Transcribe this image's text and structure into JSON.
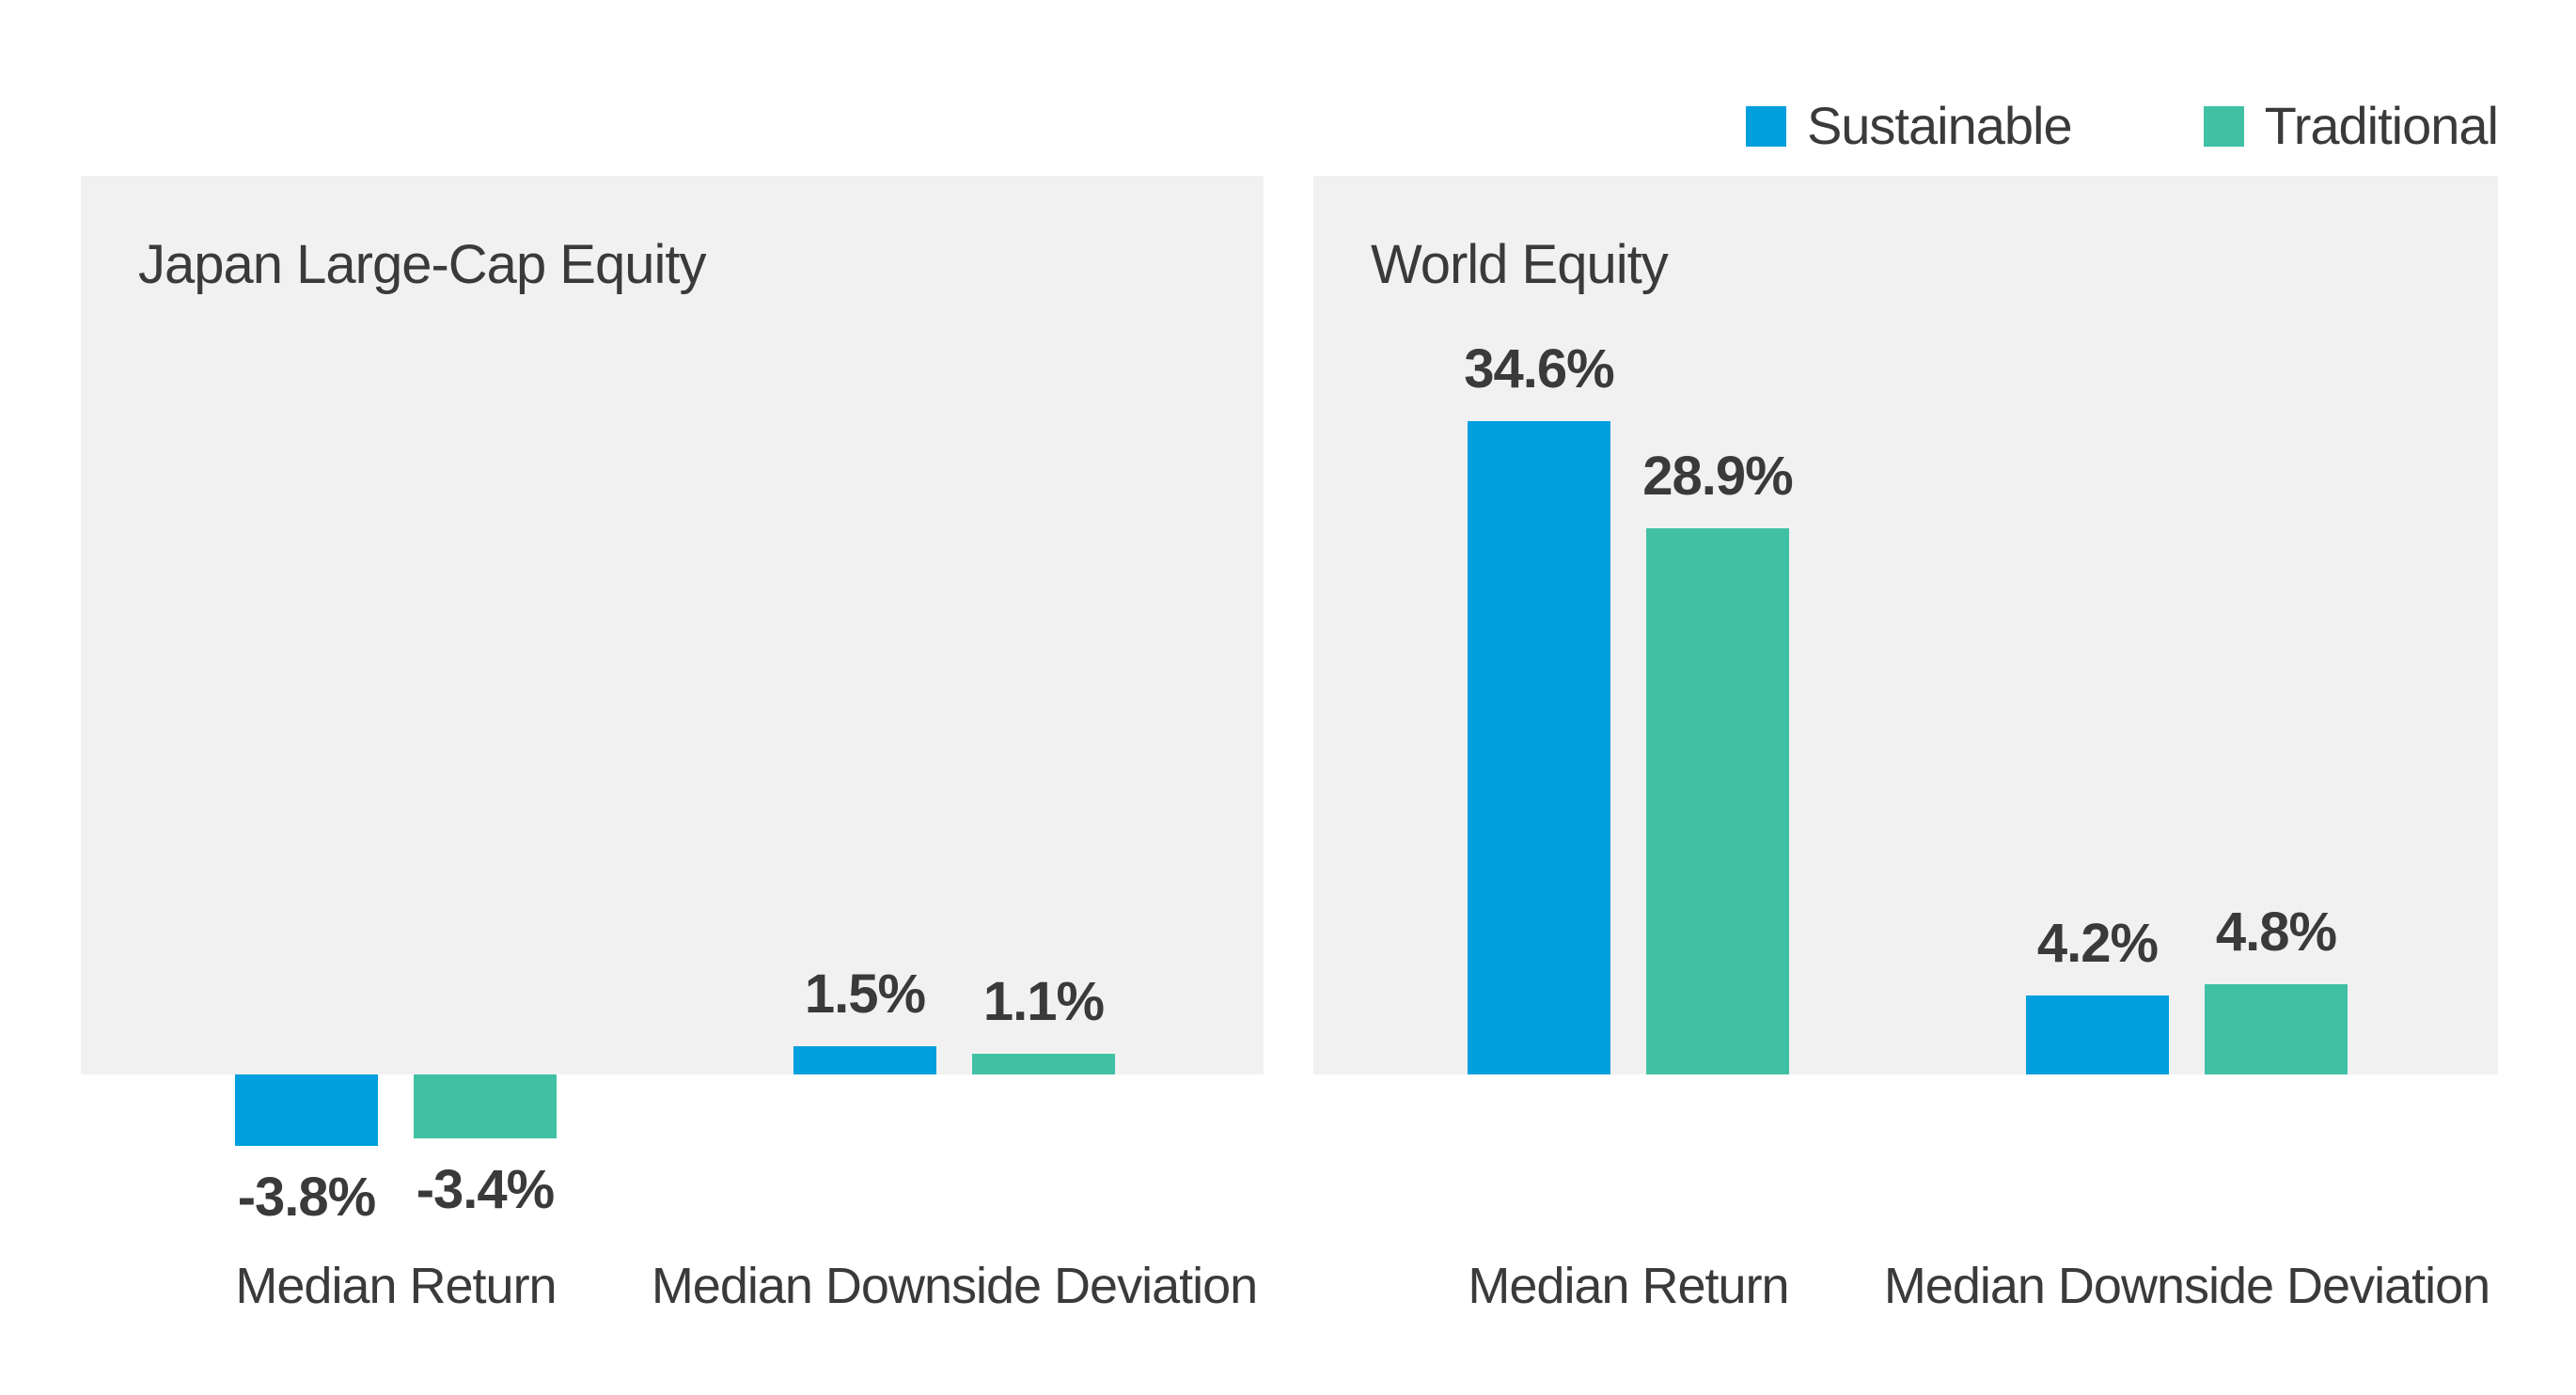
{
  "legend": {
    "position": "top-right",
    "items": [
      {
        "label": "Sustainable",
        "color": "#009FDD"
      },
      {
        "label": "Traditional",
        "color": "#40C1A4"
      }
    ]
  },
  "colors": {
    "sustainable_blue": "#009FDD",
    "traditional_green": "#40C1A4",
    "panel_background": "#F1F1F1",
    "text": "#3A3A3A",
    "page_background": "#FFFFFF"
  },
  "chart_data": [
    {
      "type": "bar",
      "title": "Japan Large-Cap Equity",
      "unit": "%",
      "grid": false,
      "axes_shown": false,
      "legend_position": "top-right",
      "categories": [
        "Median Return",
        "Median Downside Deviation"
      ],
      "series": [
        {
          "name": "Sustainable",
          "color": "#009FDD",
          "values": [
            -3.8,
            1.5
          ],
          "labels": [
            "-3.8%",
            "1.5%"
          ]
        },
        {
          "name": "Traditional",
          "color": "#40C1A4",
          "values": [
            -3.4,
            1.1
          ],
          "labels": [
            "-3.4%",
            "1.1%"
          ]
        }
      ]
    },
    {
      "type": "bar",
      "title": "World Equity",
      "unit": "%",
      "grid": false,
      "axes_shown": false,
      "legend_position": "top-right",
      "categories": [
        "Median Return",
        "Median Downside Deviation"
      ],
      "series": [
        {
          "name": "Sustainable",
          "color": "#009FDD",
          "values": [
            34.6,
            4.2
          ],
          "labels": [
            "34.6%",
            "4.2%"
          ]
        },
        {
          "name": "Traditional",
          "color": "#40C1A4",
          "values": [
            28.9,
            4.8
          ],
          "labels": [
            "28.9%",
            "4.8%"
          ]
        }
      ]
    }
  ]
}
